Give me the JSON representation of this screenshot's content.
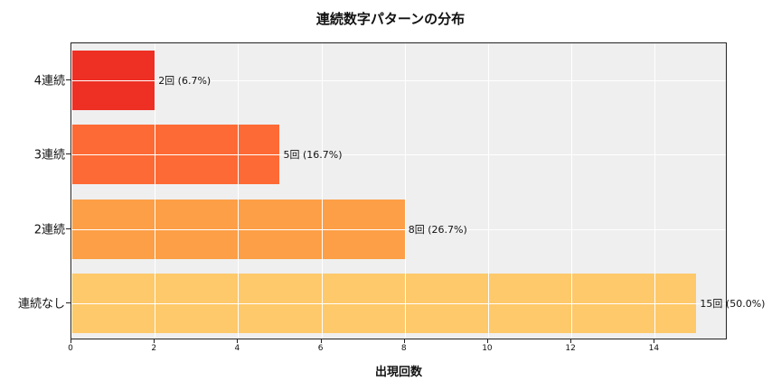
{
  "chart_data": {
    "type": "bar",
    "orientation": "horizontal",
    "title": "連続数字パターンの分布",
    "xlabel": "出現回数",
    "ylabel": "",
    "categories": [
      "4連続",
      "3連続",
      "2連続",
      "連続なし"
    ],
    "values": [
      2,
      5,
      8,
      15
    ],
    "percentages": [
      6.7,
      16.7,
      26.7,
      50.0
    ],
    "data_labels": [
      "2回 (6.7%)",
      "5回 (16.7%)",
      "8回 (26.7%)",
      "15回 (50.0%)"
    ],
    "colors": [
      "#ee2f24",
      "#fe6a35",
      "#fd9f46",
      "#fec96a"
    ],
    "xlim": [
      0,
      15.75
    ],
    "xticks": [
      0,
      2,
      4,
      6,
      8,
      10,
      12,
      14
    ],
    "grid": true,
    "background": "#efefef",
    "legend": null
  }
}
